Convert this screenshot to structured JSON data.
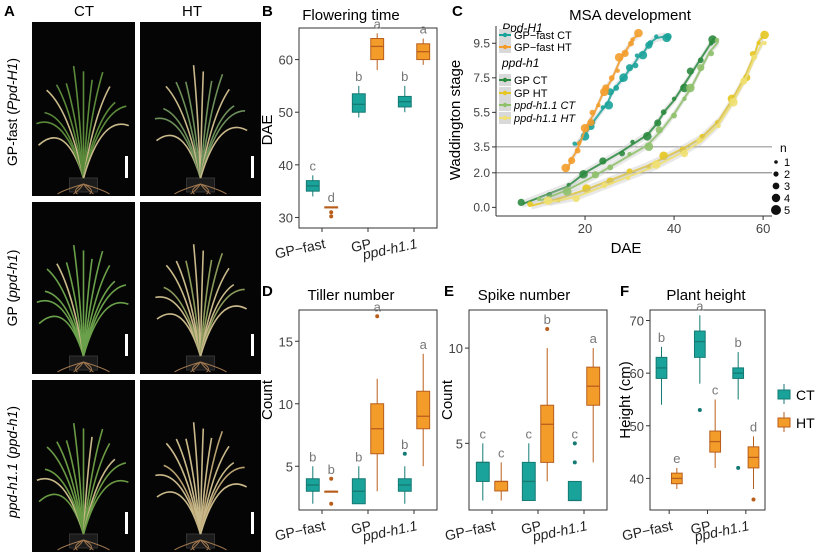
{
  "colors": {
    "ct": "#1aa39a",
    "ht": "#f39c2a",
    "ht_dark": "#b85e1c",
    "ct_dark": "#147a73",
    "gp_ct": "#2a8a3e",
    "gp_ht": "#e6c620",
    "ppd_ct": "#8ec06a",
    "ppd_ht": "#f0e070",
    "letters": "#777777"
  },
  "panel_A": {
    "letter": "A",
    "col_ct": "CT",
    "col_ht": "HT",
    "row_labels": [
      {
        "main": "GP-fast",
        "paren": "Ppd-H1"
      },
      {
        "main": "GP",
        "paren": "ppd-h1"
      },
      {
        "main": "ppd-h1.1",
        "paren": "ppd-h1",
        "main_italic": true
      }
    ]
  },
  "panel_B": {
    "letter": "B",
    "chart_data": {
      "type": "box",
      "title": "Flowering time",
      "ylabel": "DAE",
      "categories": [
        "GP−fast",
        "GP",
        "ppd-h1.1"
      ],
      "ylim": [
        28,
        66
      ],
      "yticks": [
        30,
        40,
        50,
        60
      ],
      "series": [
        {
          "name": "CT",
          "boxes": [
            {
              "min": 34,
              "q1": 35,
              "median": 36,
              "q3": 37,
              "max": 38,
              "letter": "c"
            },
            {
              "min": 49,
              "q1": 50,
              "median": 51.5,
              "q3": 53.5,
              "max": 55,
              "letter": "b"
            },
            {
              "min": 50,
              "q1": 51,
              "median": 52,
              "q3": 53,
              "max": 55,
              "letter": "b"
            }
          ]
        },
        {
          "name": "HT",
          "boxes": [
            {
              "min": 32,
              "q1": 32,
              "median": 32,
              "q3": 32,
              "max": 32,
              "letter": "d",
              "outliers": [
                31,
                30.2
              ]
            },
            {
              "min": 58,
              "q1": 60,
              "median": 62.5,
              "q3": 64,
              "max": 65,
              "letter": "a"
            },
            {
              "min": 59,
              "q1": 60,
              "median": 61.5,
              "q3": 63,
              "max": 64,
              "letter": "a"
            }
          ]
        }
      ]
    }
  },
  "panel_C": {
    "letter": "C",
    "chart_data": {
      "type": "scatter",
      "title": "MSA development",
      "xlabel": "DAE",
      "ylabel": "Waddington stage",
      "xlim": [
        0,
        62
      ],
      "ylim": [
        -0.5,
        10.5
      ],
      "xticks": [
        20,
        40,
        60
      ],
      "ytick_labels": [
        "0.0",
        "2.0",
        "3.5",
        "5.5",
        "7.5",
        "9.5"
      ],
      "ytick_values": [
        0,
        2,
        3.5,
        5.5,
        7.5,
        9.5
      ],
      "hlines": [
        2,
        3.5
      ],
      "legend_group1": "Ppd-H1",
      "legend_group2": "ppd-h1",
      "series": [
        {
          "name": "GP−fast CT",
          "color_key": "ct",
          "points": [
            [
              18,
              3.6
            ],
            [
              20,
              4.2
            ],
            [
              21,
              4.6
            ],
            [
              22,
              5.0
            ],
            [
              24,
              5.7
            ],
            [
              25,
              6.0
            ],
            [
              26,
              6.6
            ],
            [
              27,
              7.0
            ],
            [
              28,
              7.3
            ],
            [
              29,
              7.6
            ],
            [
              30,
              8.0
            ],
            [
              31,
              8.3
            ],
            [
              32,
              8.7
            ],
            [
              33,
              8.9
            ],
            [
              34,
              9.3
            ],
            [
              35,
              9.6
            ],
            [
              36,
              9.8
            ],
            [
              38,
              9.9
            ],
            [
              39,
              9.8
            ]
          ]
        },
        {
          "name": "GP−fast HT",
          "color_key": "ht",
          "points": [
            [
              16,
              2.2
            ],
            [
              17,
              2.8
            ],
            [
              18,
              3.2
            ],
            [
              19,
              3.8
            ],
            [
              20,
              4.5
            ],
            [
              21,
              5.0
            ],
            [
              22,
              5.4
            ],
            [
              23,
              6.0
            ],
            [
              24,
              6.6
            ],
            [
              25,
              7.0
            ],
            [
              26,
              7.4
            ],
            [
              27,
              8.0
            ],
            [
              28,
              8.6
            ],
            [
              29,
              9.0
            ],
            [
              30,
              9.4
            ],
            [
              31,
              9.8
            ],
            [
              32,
              10.0
            ]
          ]
        },
        {
          "name": "GP CT",
          "color_key": "gp_ct",
          "points": [
            [
              6,
              0.2
            ],
            [
              12,
              0.8
            ],
            [
              16,
              1.2
            ],
            [
              20,
              2.0
            ],
            [
              24,
              2.6
            ],
            [
              28,
              3.2
            ],
            [
              31,
              3.7
            ],
            [
              34,
              4.2
            ],
            [
              36,
              4.8
            ],
            [
              38,
              5.6
            ],
            [
              40,
              6.2
            ],
            [
              42,
              7.0
            ],
            [
              44,
              7.8
            ],
            [
              46,
              8.6
            ],
            [
              48,
              9.4
            ],
            [
              49,
              9.8
            ]
          ]
        },
        {
          "name": "GP HT",
          "color_key": "gp_ht",
          "points": [
            [
              8,
              0.1
            ],
            [
              14,
              0.5
            ],
            [
              20,
              1.0
            ],
            [
              26,
              1.6
            ],
            [
              30,
              2.0
            ],
            [
              34,
              2.4
            ],
            [
              38,
              2.9
            ],
            [
              42,
              3.4
            ],
            [
              46,
              4.0
            ],
            [
              50,
              5.0
            ],
            [
              53,
              6.2
            ],
            [
              56,
              7.6
            ],
            [
              58,
              8.8
            ],
            [
              59,
              9.6
            ],
            [
              60,
              9.9
            ]
          ]
        },
        {
          "name": "ppd-h1.1 CT",
          "color_key": "ppd_ct",
          "points": [
            [
              10,
              0.4
            ],
            [
              16,
              1.0
            ],
            [
              22,
              1.8
            ],
            [
              26,
              2.4
            ],
            [
              30,
              3.0
            ],
            [
              34,
              3.6
            ],
            [
              37,
              4.4
            ],
            [
              40,
              5.4
            ],
            [
              42,
              6.2
            ],
            [
              44,
              7.0
            ],
            [
              46,
              8.0
            ],
            [
              48,
              9.0
            ],
            [
              50,
              9.6
            ]
          ]
        },
        {
          "name": "ppd-h1.1 HT",
          "color_key": "ppd_ht",
          "points": [
            [
              12,
              0.3
            ],
            [
              18,
              0.6
            ],
            [
              24,
              1.2
            ],
            [
              30,
              1.8
            ],
            [
              36,
              2.4
            ],
            [
              42,
              3.2
            ],
            [
              46,
              3.8
            ],
            [
              50,
              4.8
            ],
            [
              53,
              6.0
            ],
            [
              56,
              7.4
            ],
            [
              58,
              8.6
            ],
            [
              60,
              9.6
            ]
          ]
        }
      ],
      "size_legend": {
        "title": "n",
        "labels": [
          "1",
          "2",
          "3",
          "4",
          "5"
        ]
      }
    }
  },
  "panel_D": {
    "letter": "D",
    "chart_data": {
      "type": "box",
      "title": "Tiller number",
      "ylabel": "Count",
      "categories": [
        "GP−fast",
        "GP",
        "ppd-h1.1"
      ],
      "ylim": [
        1.5,
        17.5
      ],
      "yticks": [
        5,
        10,
        15
      ],
      "series": [
        {
          "name": "CT",
          "boxes": [
            {
              "min": 2,
              "q1": 3,
              "median": 3.5,
              "q3": 4,
              "max": 5,
              "letter": "b"
            },
            {
              "min": 2,
              "q1": 2,
              "median": 3,
              "q3": 4,
              "max": 5,
              "letter": "b"
            },
            {
              "min": 2,
              "q1": 3,
              "median": 3.5,
              "q3": 4,
              "max": 5,
              "letter": "b",
              "outliers": [
                6
              ]
            }
          ]
        },
        {
          "name": "HT",
          "boxes": [
            {
              "min": 3,
              "q1": 3,
              "median": 3,
              "q3": 3,
              "max": 3,
              "letter": "b",
              "outliers": [
                4,
                2
              ]
            },
            {
              "min": 3,
              "q1": 6,
              "median": 8,
              "q3": 10,
              "max": 12,
              "letter": "a",
              "outliers": [
                17
              ]
            },
            {
              "min": 5,
              "q1": 8,
              "median": 9,
              "q3": 11,
              "max": 14,
              "letter": "a"
            }
          ]
        }
      ]
    }
  },
  "panel_E": {
    "letter": "E",
    "chart_data": {
      "type": "box",
      "title": "Spike number",
      "ylabel": "Count",
      "categories": [
        "GP−fast",
        "GP",
        "ppd-h1.1"
      ],
      "ylim": [
        1.5,
        12
      ],
      "yticks": [
        5,
        10
      ],
      "series": [
        {
          "name": "CT",
          "boxes": [
            {
              "min": 2,
              "q1": 3,
              "median": 4,
              "q3": 4,
              "max": 5,
              "letter": "c"
            },
            {
              "min": 2,
              "q1": 2,
              "median": 3,
              "q3": 4,
              "max": 5,
              "letter": "c"
            },
            {
              "min": 2,
              "q1": 2,
              "median": 2,
              "q3": 3,
              "max": 3,
              "letter": "c",
              "outliers": [
                5,
                4
              ]
            }
          ]
        },
        {
          "name": "HT",
          "boxes": [
            {
              "min": 2,
              "q1": 2.5,
              "median": 3,
              "q3": 3,
              "max": 4,
              "letter": "c"
            },
            {
              "min": 3,
              "q1": 4,
              "median": 6,
              "q3": 7,
              "max": 10,
              "letter": "b",
              "outliers": [
                11
              ]
            },
            {
              "min": 4,
              "q1": 7,
              "median": 8,
              "q3": 9,
              "max": 10,
              "letter": "a"
            }
          ]
        }
      ]
    }
  },
  "panel_F": {
    "letter": "F",
    "chart_data": {
      "type": "box",
      "title": "Plant height",
      "ylabel": "Height (cm)",
      "categories": [
        "GP−fast",
        "GP",
        "ppd-h1.1"
      ],
      "ylim": [
        34,
        72
      ],
      "yticks": [
        40,
        50,
        60,
        70
      ],
      "legend": [
        "CT",
        "HT"
      ],
      "series": [
        {
          "name": "CT",
          "boxes": [
            {
              "min": 54,
              "q1": 59,
              "median": 61,
              "q3": 63,
              "max": 65,
              "letter": "b"
            },
            {
              "min": 58,
              "q1": 63,
              "median": 66,
              "q3": 68,
              "max": 71,
              "letter": "a",
              "outliers": [
                53
              ]
            },
            {
              "min": 55,
              "q1": 59,
              "median": 60,
              "q3": 61,
              "max": 64,
              "letter": "b",
              "outliers": [
                42
              ]
            }
          ]
        },
        {
          "name": "HT",
          "boxes": [
            {
              "min": 38,
              "q1": 39,
              "median": 40,
              "q3": 41,
              "max": 42,
              "letter": "e"
            },
            {
              "min": 42,
              "q1": 45,
              "median": 47,
              "q3": 49,
              "max": 55,
              "letter": "c"
            },
            {
              "min": 38,
              "q1": 42,
              "median": 44,
              "q3": 46,
              "max": 48,
              "letter": "d",
              "outliers": [
                36
              ]
            }
          ]
        }
      ]
    }
  }
}
